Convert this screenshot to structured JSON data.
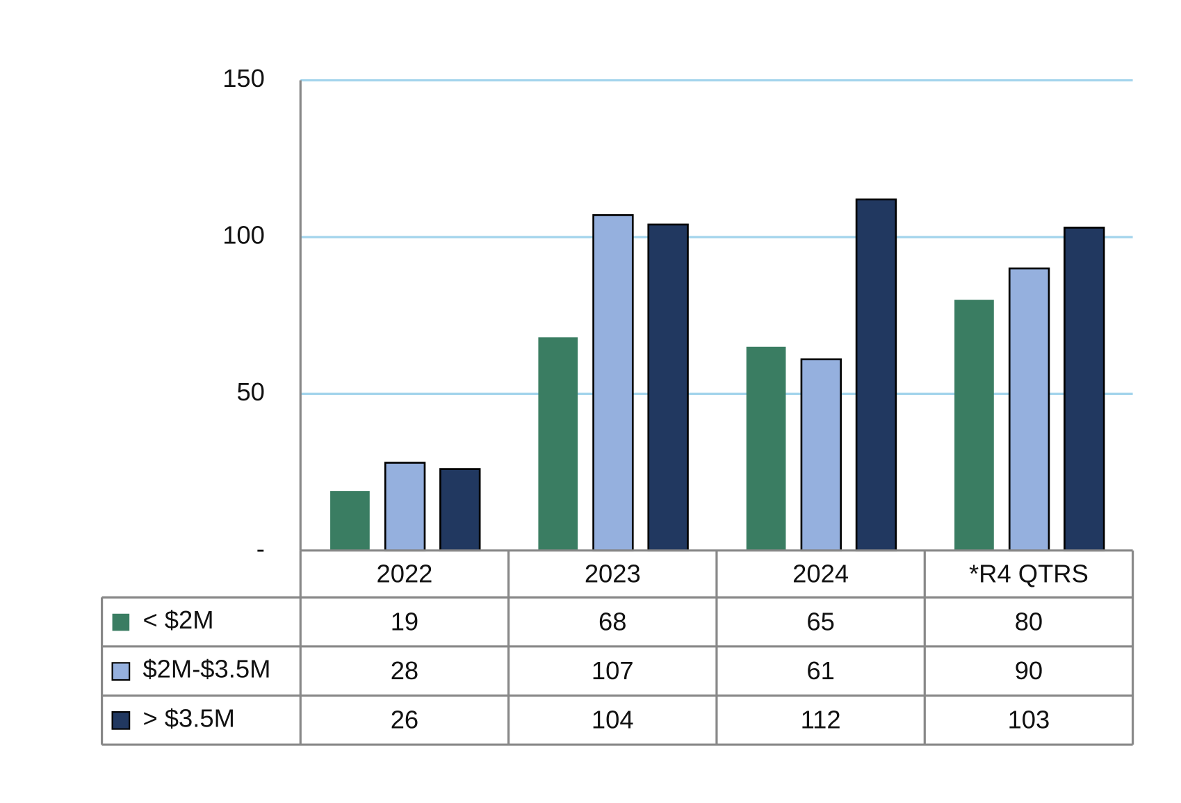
{
  "chart_data": {
    "type": "bar",
    "categories": [
      "2022",
      "2023",
      "2024",
      "*R4 QTRS"
    ],
    "series": [
      {
        "name": "< $2M",
        "color": "#3a7d62",
        "values": [
          19,
          68,
          65,
          80
        ]
      },
      {
        "name": "$2M-$3.5M",
        "color": "#95b0de",
        "values": [
          28,
          107,
          61,
          90
        ]
      },
      {
        "name": "> $3.5M",
        "color": "#213860",
        "values": [
          26,
          104,
          112,
          103
        ]
      }
    ],
    "ylim": [
      0,
      150
    ],
    "yticks": [
      {
        "value": 0,
        "label": "-"
      },
      50,
      100,
      150
    ],
    "grid": true
  }
}
